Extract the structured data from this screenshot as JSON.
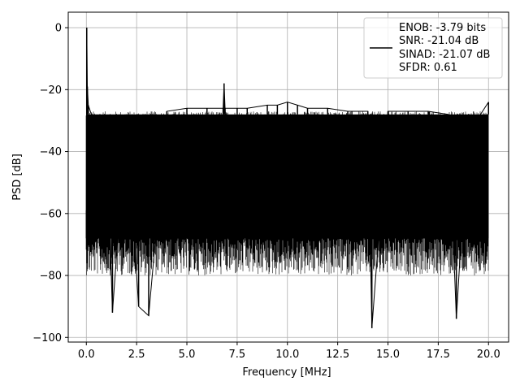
{
  "chart_data": {
    "type": "line",
    "xlabel": "Frequency [MHz]",
    "ylabel": "PSD [dB]",
    "xlim": [
      -0.9,
      21.0
    ],
    "ylim": [
      -101.5,
      5.0
    ],
    "xticks": [
      0.0,
      2.5,
      5.0,
      7.5,
      10.0,
      12.5,
      15.0,
      17.5,
      20.0
    ],
    "xtick_labels": [
      "0.0",
      "2.5",
      "5.0",
      "7.5",
      "10.0",
      "12.5",
      "15.0",
      "17.5",
      "20.0"
    ],
    "yticks": [
      0,
      -20,
      -40,
      -60,
      -80,
      -100
    ],
    "ytick_labels": [
      "0",
      "−20",
      "−40",
      "−60",
      "−80",
      "−100"
    ],
    "grid": true,
    "legend_position": "top-right",
    "legend_entries": [
      "ENOB: -3.79 bits",
      "SNR: -21.04 dB",
      "SINAD: -21.07 dB",
      "SFDR: 0.61"
    ],
    "series": [
      {
        "color": "#000000",
        "noise_floor_top_db": -28,
        "noise_floor_bottom_db": -68,
        "x": [
          0.0,
          0.02,
          0.05,
          0.1,
          0.3,
          1.0,
          1.3,
          2.0,
          2.6,
          3.1,
          4.0,
          5.0,
          6.0,
          6.8,
          6.85,
          6.9,
          7.5,
          8.0,
          9.0,
          9.5,
          10.0,
          10.5,
          11.0,
          12.0,
          13.0,
          14.0,
          14.2,
          15.0,
          16.0,
          17.0,
          18.0,
          18.4,
          19.0,
          19.5,
          20.0
        ],
        "y": [
          -59,
          0,
          -19,
          -25,
          -29,
          -29,
          -92,
          -28,
          -90,
          -93,
          -27,
          -26,
          -26,
          -26,
          -18,
          -26,
          -26,
          -26,
          -25,
          -25,
          -24,
          -25,
          -26,
          -26,
          -27,
          -27,
          -97,
          -27,
          -27,
          -27,
          -28,
          -94,
          -28,
          -29,
          -24
        ]
      }
    ]
  }
}
